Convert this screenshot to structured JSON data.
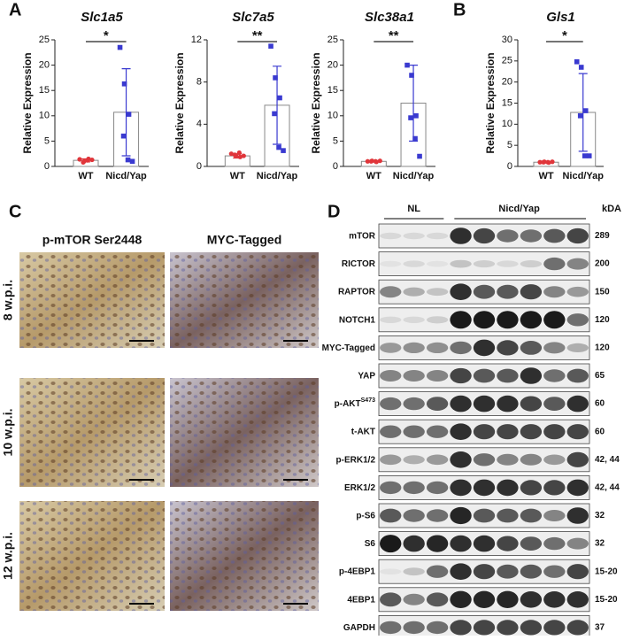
{
  "panel_labels": [
    "A",
    "B",
    "C",
    "D"
  ],
  "chart_data": [
    {
      "type": "bar",
      "title": "Slc1a5",
      "ylabel": "Relative Expression",
      "categories": [
        "WT",
        "Nicd/Yap"
      ],
      "values": [
        1.2,
        10.7
      ],
      "errors": [
        0.3,
        8.6
      ],
      "colors": [
        "#e0353a",
        "#3a3ad0"
      ],
      "points": [
        [
          1.4,
          1.0,
          1.5,
          0.8,
          1.2,
          1.3
        ],
        [
          23.5,
          16.3,
          10.3,
          6.0,
          1.3,
          1.0
        ]
      ],
      "ylim": [
        0,
        25
      ],
      "yticks": [
        0,
        5,
        10,
        15,
        20,
        25
      ],
      "significance": "*"
    },
    {
      "type": "bar",
      "title": "Slc7a5",
      "ylabel": "Relative Expression",
      "categories": [
        "WT",
        "Nicd/Yap"
      ],
      "values": [
        1.0,
        5.8
      ],
      "errors": [
        0.2,
        3.7
      ],
      "colors": [
        "#e0353a",
        "#3a3ad0"
      ],
      "points": [
        [
          1.2,
          1.0,
          0.9,
          1.1,
          1.3,
          1.0
        ],
        [
          11.4,
          8.4,
          6.5,
          5.0,
          1.8,
          1.5
        ]
      ],
      "ylim": [
        0,
        12
      ],
      "yticks": [
        0,
        4,
        8,
        12
      ],
      "significance": "**"
    },
    {
      "type": "bar",
      "title": "Slc38a1",
      "ylabel": "Relative Expression",
      "categories": [
        "WT",
        "Nicd/Yap"
      ],
      "values": [
        1.0,
        12.5
      ],
      "errors": [
        0.1,
        7.5
      ],
      "colors": [
        "#e0353a",
        "#3a3ad0"
      ],
      "points": [
        [
          1.0,
          1.1,
          0.9,
          1.0,
          1.0,
          1.1
        ],
        [
          20.0,
          18.0,
          10.0,
          9.6,
          5.5,
          2.0
        ]
      ],
      "ylim": [
        0,
        25
      ],
      "yticks": [
        0,
        5,
        10,
        15,
        20,
        25
      ],
      "significance": "**"
    },
    {
      "type": "bar",
      "title": "Gls1",
      "ylabel": "Relative Expression",
      "categories": [
        "WT",
        "Nicd/Yap"
      ],
      "values": [
        1.0,
        12.8
      ],
      "errors": [
        0.1,
        9.2
      ],
      "colors": [
        "#e0353a",
        "#3a3ad0"
      ],
      "points": [
        [
          1.0,
          1.1,
          0.9,
          1.0,
          1.0,
          1.1
        ],
        [
          24.8,
          23.5,
          13.2,
          12.0,
          2.5,
          2.5
        ]
      ],
      "ylim": [
        0,
        30
      ],
      "yticks": [
        0,
        5,
        10,
        15,
        20,
        25,
        30
      ],
      "significance": "*"
    }
  ],
  "histology": {
    "columns": [
      "p-mTOR Ser2448",
      "MYC-Tagged"
    ],
    "rows": [
      "8 w.p.i.",
      "10 w.p.i.",
      "12 w.p.i."
    ]
  },
  "western": {
    "groups": [
      "NL",
      "Nicd/Yap"
    ],
    "unit": "kDA",
    "rows": [
      {
        "label": "mTOR",
        "kda": 289
      },
      {
        "label": "RICTOR",
        "kda": 200
      },
      {
        "label": "RAPTOR",
        "kda": 150
      },
      {
        "label": "NOTCH1",
        "kda": 120
      },
      {
        "label": "MYC-Tagged",
        "kda": 120
      },
      {
        "label": "YAP",
        "kda": 65
      },
      {
        "label": "p-AKT",
        "sup": "S473",
        "kda": 60
      },
      {
        "label": "t-AKT",
        "kda": 60
      },
      {
        "label": "p-ERK1/2",
        "kda": "42, 44"
      },
      {
        "label": "ERK1/2",
        "kda": "42, 44"
      },
      {
        "label": "p-S6",
        "kda": 32
      },
      {
        "label": "S6",
        "kda": 32
      },
      {
        "label": "p-4EBP1",
        "kda": "15-20"
      },
      {
        "label": "4EBP1",
        "kda": "15-20"
      },
      {
        "label": "GAPDH",
        "kda": 37
      }
    ]
  }
}
